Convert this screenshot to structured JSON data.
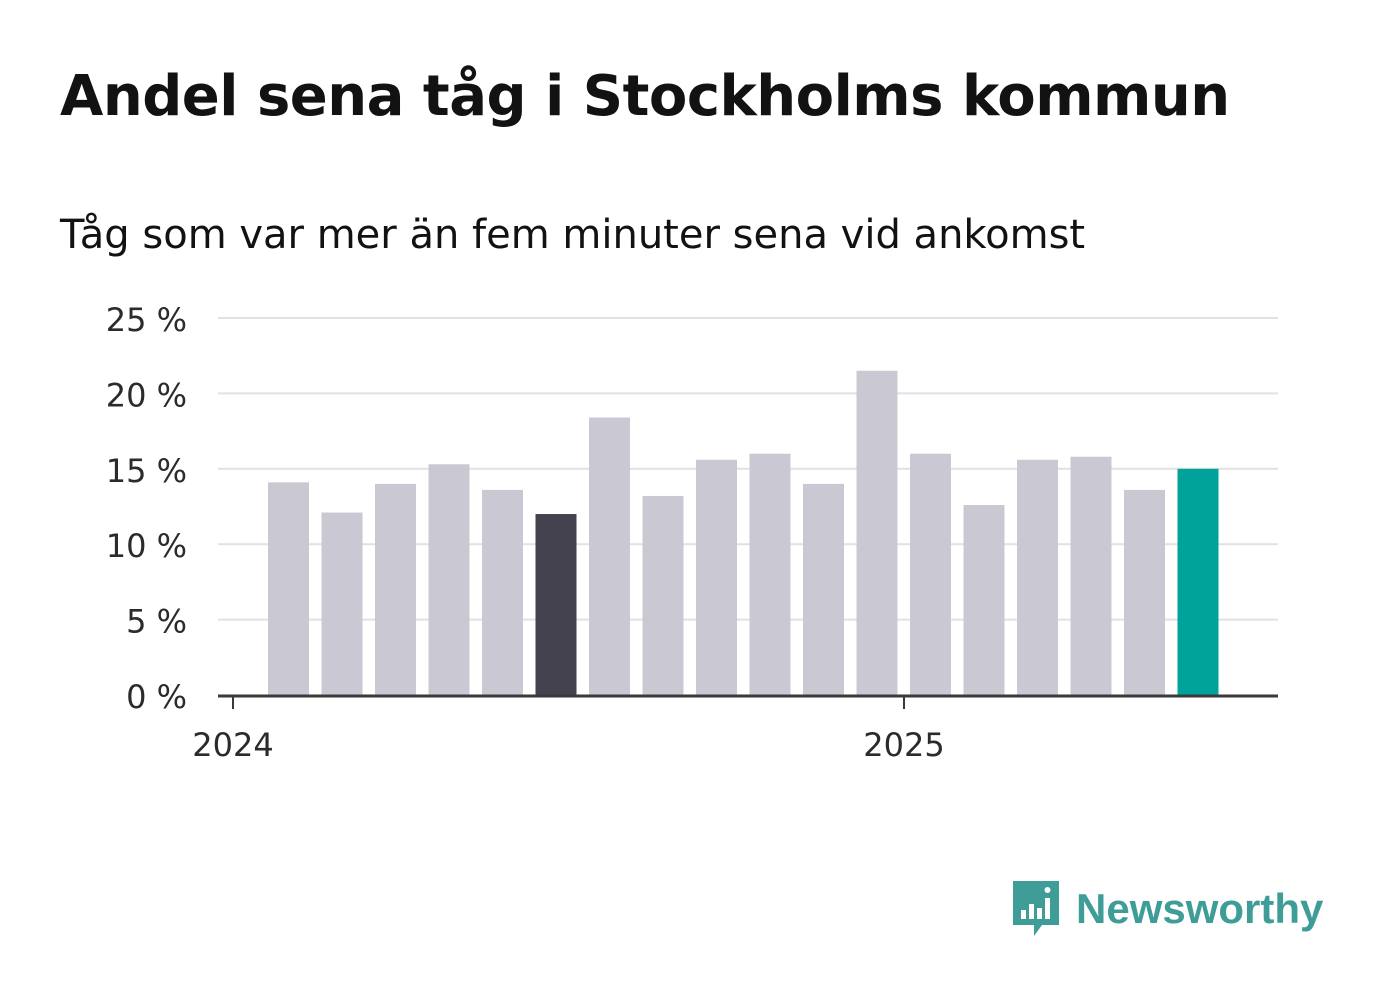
{
  "header": {
    "title": "Andel sena tåg i Stockholms kommun",
    "subtitle": "Tåg som var mer än fem minuter sena vid ankomst"
  },
  "colors": {
    "bar_default": "#c9c8d3",
    "bar_highlight_dark": "#43424e",
    "bar_highlight_accent": "#00a39a",
    "grid": "#e1e1e6",
    "axis": "#3a3a3a",
    "logo": "#3f9d98"
  },
  "chart_data": {
    "type": "bar",
    "title": "Andel sena tåg i Stockholms kommun",
    "subtitle": "Tåg som var mer än fem minuter sena vid ankomst",
    "xlabel": "",
    "ylabel": "",
    "x_tick_labels": [
      "2024",
      "2025"
    ],
    "y_ticks": [
      0,
      5,
      10,
      15,
      20,
      25
    ],
    "y_tick_labels": [
      "0 %",
      "5 %",
      "10 %",
      "15 %",
      "20 %",
      "25 %"
    ],
    "ylim": [
      0,
      25
    ],
    "grid": true,
    "legend": "none",
    "categories": [
      "2024-01",
      "2024-02",
      "2024-03",
      "2024-04",
      "2024-05",
      "2024-06",
      "2024-07",
      "2024-08",
      "2024-09",
      "2024-10",
      "2024-11",
      "2024-12",
      "2025-01",
      "2025-02",
      "2025-03",
      "2025-04",
      "2025-05",
      "2025-06"
    ],
    "values": [
      14.1,
      12.1,
      14.0,
      15.3,
      13.6,
      12.0,
      18.4,
      13.2,
      15.6,
      16.0,
      14.0,
      21.5,
      16.0,
      12.6,
      15.6,
      15.8,
      13.6,
      15.0
    ],
    "highlight": {
      "2024-06": "#43424e",
      "2025-06": "#00a39a"
    }
  },
  "logo": {
    "text": "Newsworthy",
    "icon": "newsworthy-chart-bubble-icon"
  }
}
